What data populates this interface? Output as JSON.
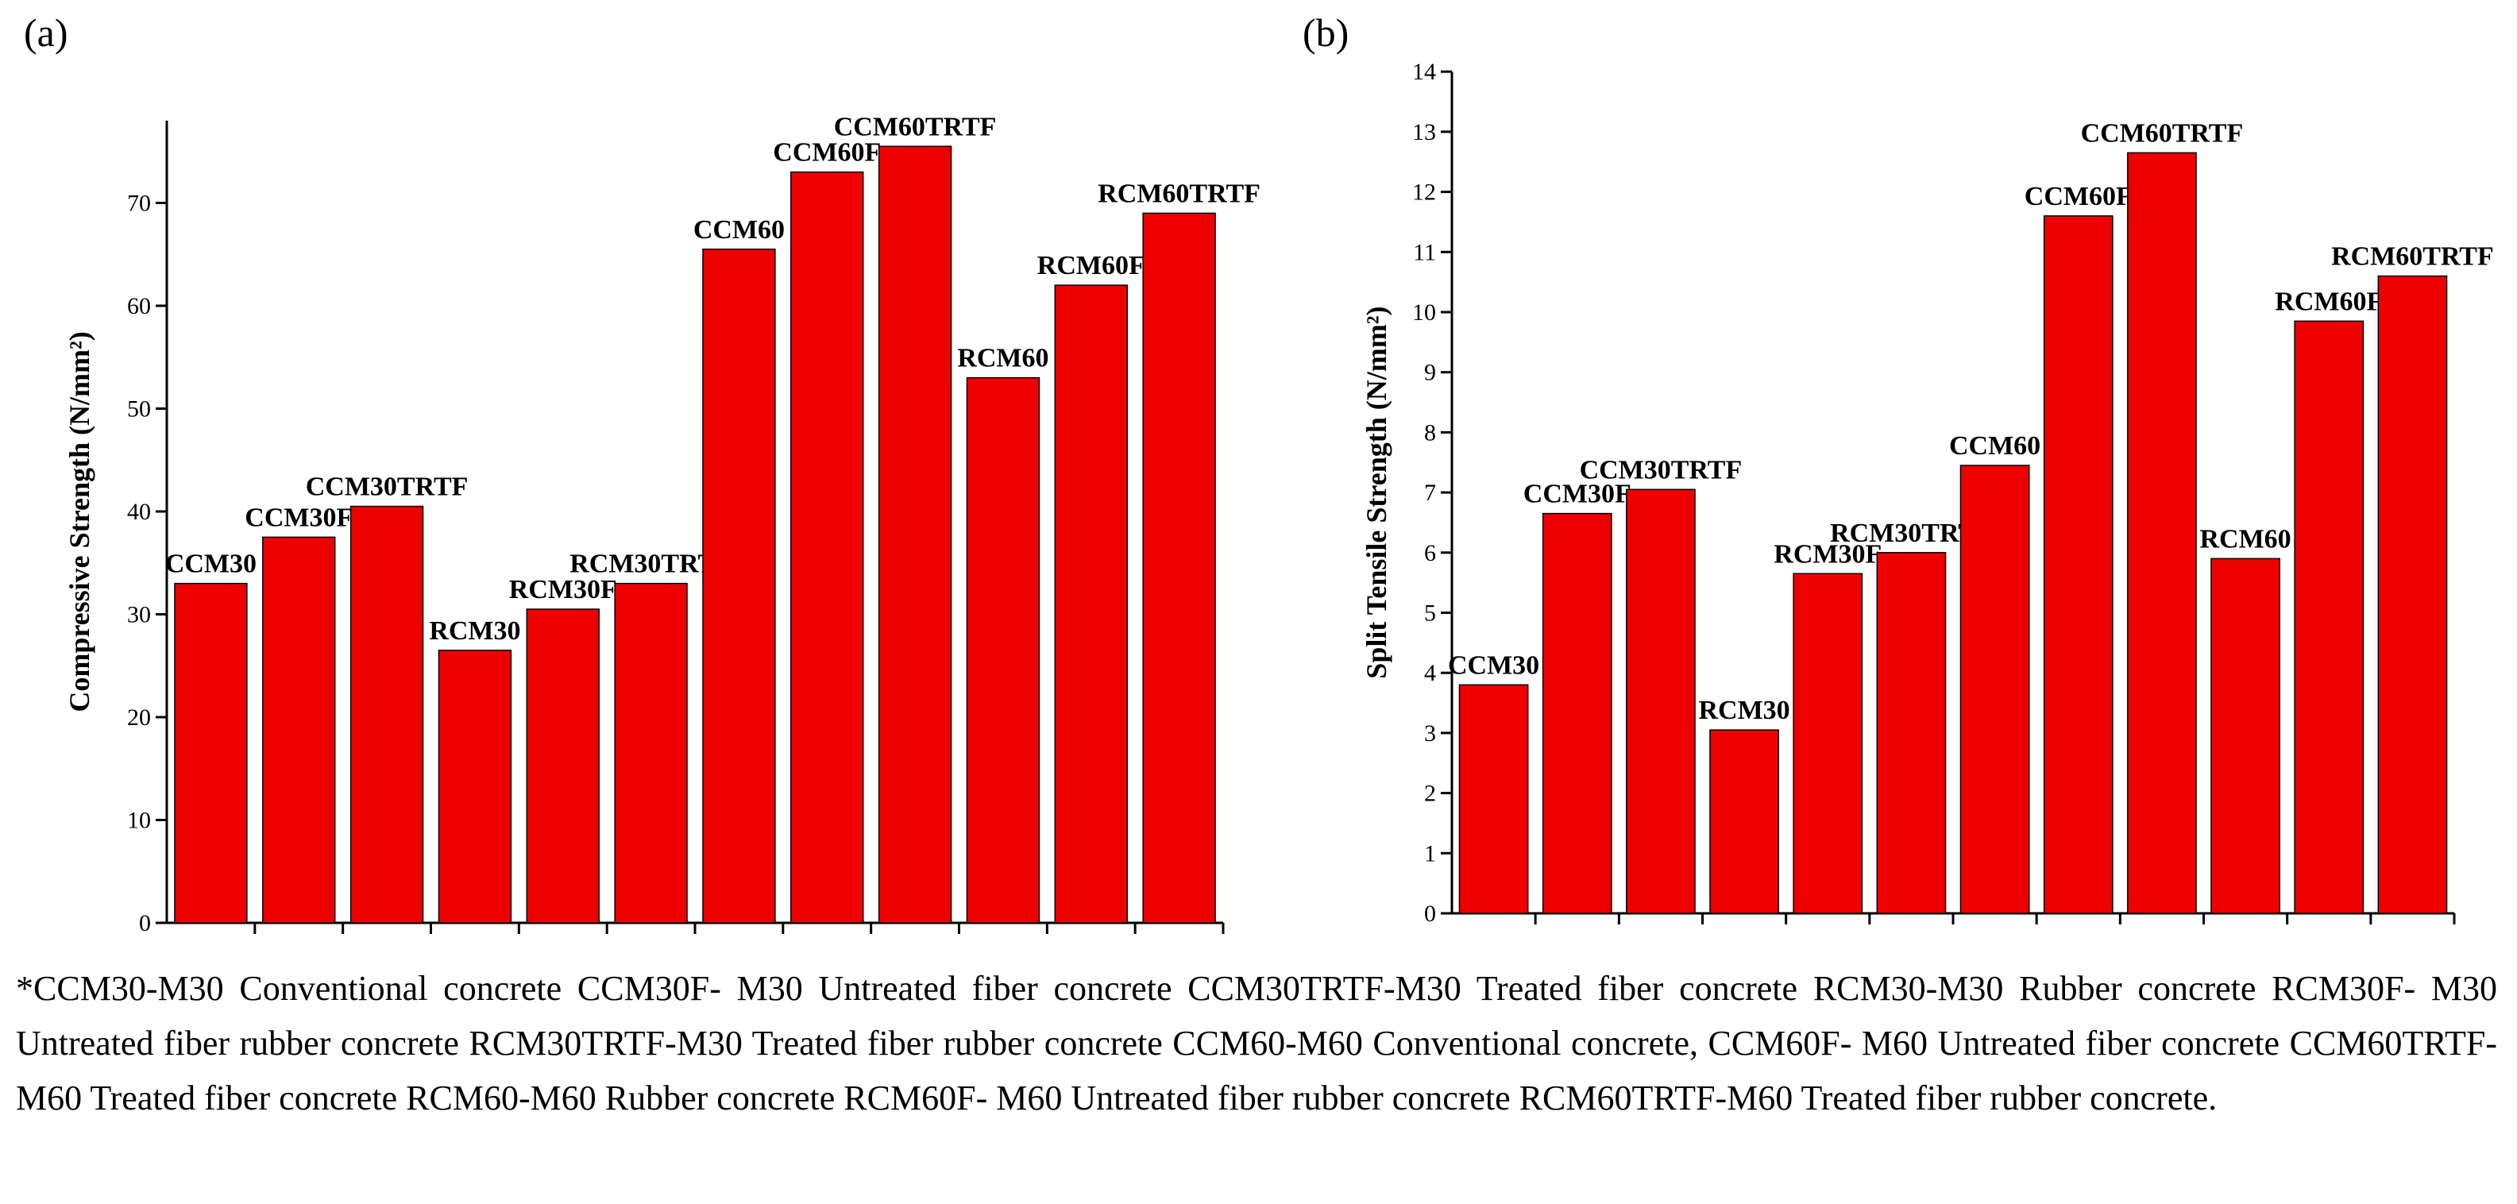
{
  "chart_data": [
    {
      "panel": "(a)",
      "type": "bar",
      "categories": [
        "CCM30",
        "CCM30F",
        "CCM30TRTF",
        "RCM30",
        "RCM30F",
        "RCM30TRTF",
        "CCM60",
        "CCM60F",
        "CCM60TRTF",
        "RCM60",
        "RCM60F",
        "RCM60TRTF"
      ],
      "values": [
        33,
        37.5,
        40.5,
        26.5,
        30.5,
        33,
        65.5,
        73,
        75.5,
        53,
        62,
        69
      ],
      "title": "",
      "xlabel": "",
      "ylabel": "Compressive Strength (N/mm²)",
      "ylim": [
        0,
        78
      ],
      "yticks": [
        0,
        10,
        20,
        30,
        40,
        50,
        60,
        70
      ],
      "bar_color": "#ee0000",
      "grid": false,
      "legend": "none"
    },
    {
      "panel": "(b)",
      "type": "bar",
      "categories": [
        "CCM30",
        "CCM30F",
        "CCM30TRTF",
        "RCM30",
        "RCM30F",
        "RCM30TRTF",
        "CCM60",
        "CCM60F",
        "CCM60TRTF",
        "RCM60",
        "RCM60F",
        "RCM60TRTF"
      ],
      "values": [
        3.8,
        6.65,
        7.05,
        3.05,
        5.65,
        6.0,
        7.45,
        11.6,
        12.65,
        5.9,
        9.85,
        10.6
      ],
      "title": "",
      "xlabel": "",
      "ylabel": "Split Tensile Strength (N/mm²)",
      "ylim": [
        0,
        14
      ],
      "yticks": [
        0,
        1,
        2,
        3,
        4,
        5,
        6,
        7,
        8,
        9,
        10,
        11,
        12,
        13,
        14
      ],
      "bar_color": "#ee0000",
      "grid": false,
      "legend": "none"
    }
  ],
  "caption": "*CCM30-M30 Conventional concrete CCM30F- M30 Untreated fiber concrete CCM30TRTF-M30 Treated fiber concrete RCM30-M30 Rubber concrete RCM30F- M30 Untreated fiber rubber concrete RCM30TRTF-M30 Treated fiber rubber concrete CCM60-M60 Conventional concrete, CCM60F- M60 Untreated fiber concrete CCM60TRTF-M60 Treated fiber concrete RCM60-M60 Rubber concrete RCM60F- M60 Untreated fiber rubber concrete RCM60TRTF-M60 Treated fiber rubber concrete."
}
